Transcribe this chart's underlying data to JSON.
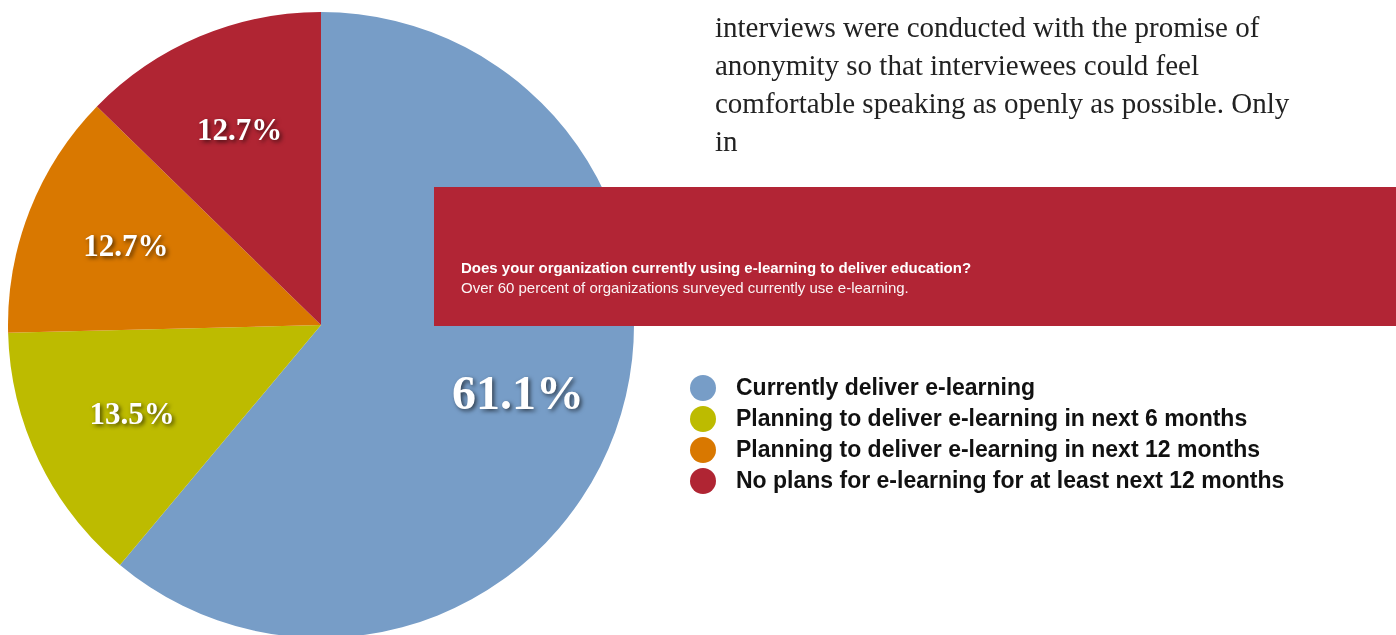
{
  "chart_data": {
    "type": "pie",
    "title": "Does your organization currently using e-learning to deliver education?",
    "subtitle": "Over 60 percent of organizations surveyed currently use e-learning.",
    "categories": [
      "Currently deliver e-learning",
      "Planning to deliver e-learning in next 6 months",
      "Planning to deliver e-learning in next 12 months",
      "No plans for e-learning for at least next 12 months"
    ],
    "values": [
      61.1,
      13.5,
      12.7,
      12.7
    ],
    "colors": [
      "#779dc7",
      "#bdbb00",
      "#d97800",
      "#b02533"
    ],
    "value_labels": [
      "61.1%",
      "13.5%",
      "12.7%",
      "12.7%"
    ],
    "legend": "right",
    "annotations": [
      "interviews were conducted with the promise of anonymity so that interviewees could feel comfortable speaking as openly as possible. Only in"
    ]
  }
}
